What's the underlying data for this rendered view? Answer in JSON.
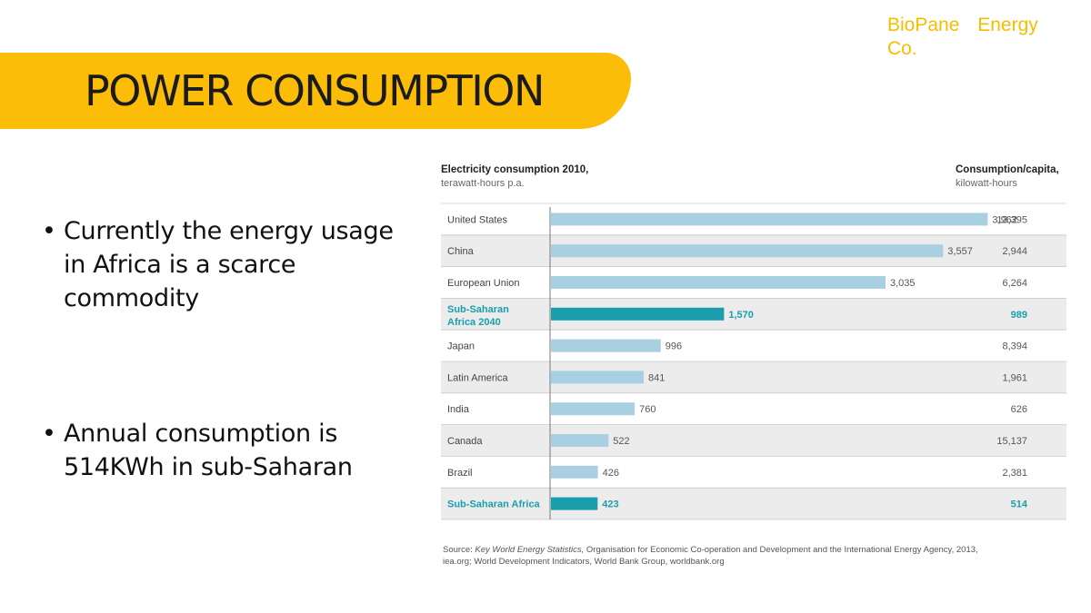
{
  "brand": "BioPane Energy Co.",
  "title": "POWER CONSUMPTION",
  "bullets": [
    "Currently the energy usage in Africa is a scarce commodity",
    "Annual consumption is 514KWh in sub-Saharan"
  ],
  "chart_data": {
    "type": "bar",
    "orientation": "horizontal",
    "title": "Electricity consumption 2010,",
    "subtitle": "terawatt-hours p.a.",
    "right_column_title": "Consumption/capita,",
    "right_column_subtitle": "kilowatt-hours",
    "categories": [
      "United States",
      "China",
      "European Union",
      "Sub-Saharan Africa 2040",
      "Japan",
      "Latin America",
      "India",
      "Canada",
      "Brazil",
      "Sub-Saharan Africa"
    ],
    "values": [
      3962,
      3557,
      3035,
      1570,
      996,
      841,
      760,
      522,
      426,
      423
    ],
    "value_labels": [
      "3,962",
      "3,557",
      "3,035",
      "1,570",
      "996",
      "841",
      "760",
      "522",
      "426",
      "423"
    ],
    "per_capita": [
      "13,395",
      "2,944",
      "6,264",
      "989",
      "8,394",
      "1,961",
      "626",
      "15,137",
      "2,381",
      "514"
    ],
    "highlighted": [
      false,
      false,
      false,
      true,
      false,
      false,
      false,
      false,
      false,
      true
    ],
    "xlim": [
      0,
      4000
    ],
    "colors": {
      "bar": "#a9cfe3",
      "highlight": "#1b9eab",
      "highlight_text": "#1b9eab",
      "row_shade": "#ececec"
    },
    "source_prefix": "Source: ",
    "source_italic": "Key World Energy Statistics,",
    "source_rest": " Organisation for Economic Co-operation and Development and the International Energy Agency, 2013, iea.org; World Development Indicators, World Bank Group, worldbank.org"
  },
  "colors": {
    "accent": "#fbbd08",
    "brand_text": "#f6bd00"
  }
}
